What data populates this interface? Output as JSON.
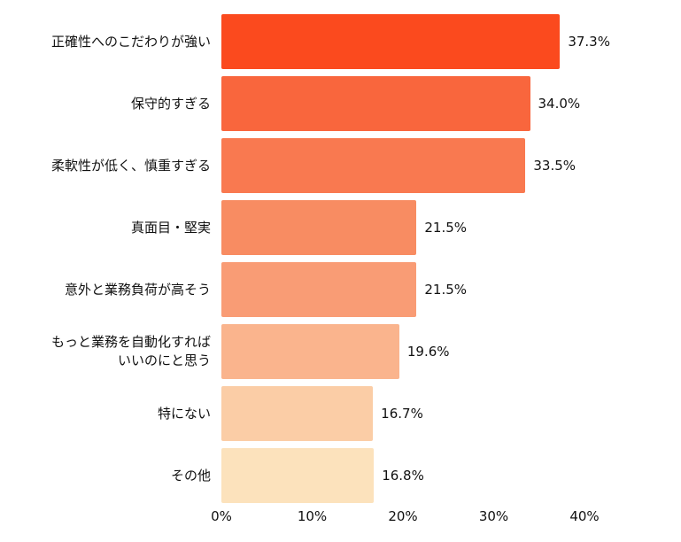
{
  "chart_data": {
    "type": "bar",
    "orientation": "horizontal",
    "title": "",
    "xlabel": "",
    "ylabel": "",
    "grid": false,
    "legend": false,
    "background": "#ffffff",
    "xlim": [
      0,
      40
    ],
    "x_ticks": [
      "0%",
      "10%",
      "20%",
      "30%",
      "40%"
    ],
    "categories": [
      "正確性へのこだわりが強い",
      "保守的すぎる",
      "柔軟性が低く、慎重すぎる",
      "真面目・堅実",
      "意外と業務負荷が高そう",
      "もっと業務を自動化すれば\nいいのにと思う",
      "特にない",
      "その他"
    ],
    "values": [
      37.3,
      34.0,
      33.5,
      21.5,
      21.5,
      19.6,
      16.7,
      16.8
    ],
    "value_labels": [
      "37.3%",
      "34.0%",
      "33.5%",
      "21.5%",
      "21.5%",
      "19.6%",
      "16.7%",
      "16.8%"
    ],
    "bar_colors": [
      "#fb4a1e",
      "#f9663d",
      "#f97950",
      "#f88c62",
      "#f99c75",
      "#fab48d",
      "#fbcda6",
      "#fce2bc"
    ]
  }
}
